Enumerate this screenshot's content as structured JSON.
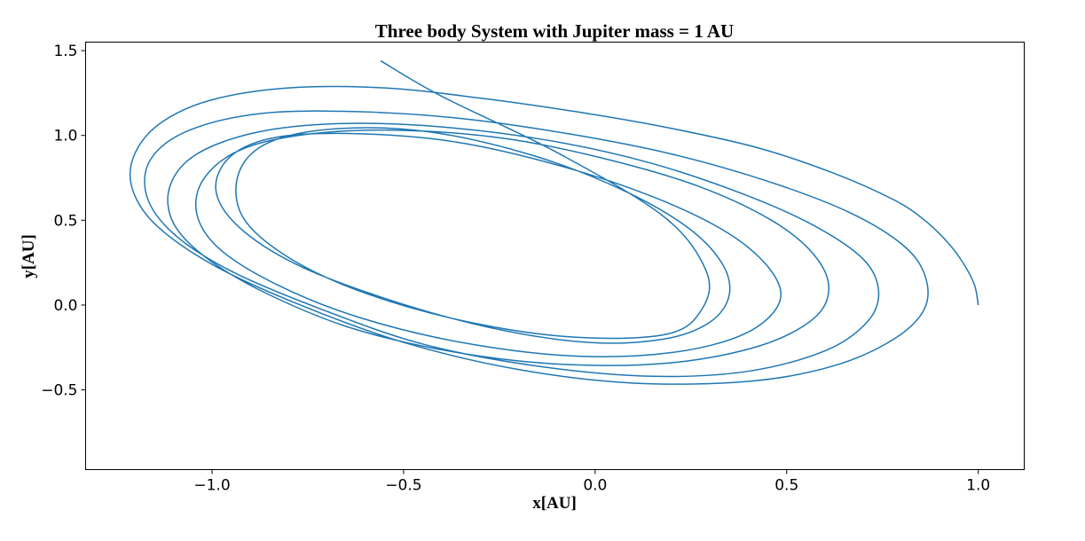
{
  "chart_data": {
    "type": "line",
    "title": "Three body System with Jupiter mass = 1 AU",
    "xlabel": "x[AU]",
    "ylabel": "y[AU]",
    "xlim": [
      -1.33,
      1.12
    ],
    "ylim": [
      -0.97,
      1.55
    ],
    "xticks": [
      -1.0,
      -0.5,
      0.0,
      0.5,
      1.0
    ],
    "xtick_labels": [
      "−1.0",
      "−0.5",
      "0.0",
      "0.5",
      "1.0"
    ],
    "yticks": [
      -0.5,
      0.0,
      0.5,
      1.0,
      1.5
    ],
    "ytick_labels": [
      "−0.5",
      "0.0",
      "0.5",
      "1.0",
      "1.5"
    ],
    "grid": false,
    "line_color": "#1f77b4",
    "series": [
      {
        "description_points": "orbit trajectory (spiral of ~5 decaying ellipses)",
        "x": [
          1.0,
          0.99,
          0.96,
          0.92,
          0.86,
          0.78,
          0.62,
          0.42,
          0.18,
          -0.05,
          -0.3,
          -0.55,
          -0.8,
          -1.0,
          -1.13,
          -1.2,
          -1.21,
          -1.15,
          -1.0,
          -0.78,
          -0.5,
          -0.2,
          0.1,
          0.4,
          0.62,
          0.78,
          0.86,
          0.86,
          0.8,
          0.66,
          0.45,
          0.2,
          -0.07,
          -0.35,
          -0.62,
          -0.87,
          -1.06,
          -1.16,
          -1.17,
          -1.1,
          -0.95,
          -0.72,
          -0.45,
          -0.15,
          0.15,
          0.4,
          0.6,
          0.71,
          0.74,
          0.7,
          0.57,
          0.38,
          0.14,
          -0.12,
          -0.4,
          -0.66,
          -0.88,
          -1.04,
          -1.11,
          -1.1,
          -1.01,
          -0.85,
          -0.63,
          -0.36,
          -0.08,
          0.2,
          0.43,
          0.57,
          0.61,
          0.57,
          0.46,
          0.27,
          0.03,
          -0.23,
          -0.5,
          -0.74,
          -0.92,
          -1.02,
          -1.04,
          -0.98,
          -0.83,
          -0.62,
          -0.35,
          -0.06,
          0.2,
          0.39,
          0.48,
          0.46,
          0.35,
          0.16,
          -0.09,
          -0.36,
          -0.62,
          -0.83,
          -0.95,
          -0.99,
          -0.93,
          -0.78,
          -0.55,
          -0.28,
          -0.02,
          0.18,
          0.3,
          0.35,
          0.33,
          0.24,
          0.07,
          -0.16,
          -0.43,
          -0.67,
          -0.85,
          -0.93,
          -0.92,
          -0.8,
          -0.6,
          -0.33,
          -0.05,
          0.19,
          0.28,
          0.29,
          0.18,
          -0.1,
          -0.4,
          -0.56
        ],
        "y": [
          0.0,
          0.12,
          0.25,
          0.37,
          0.5,
          0.62,
          0.78,
          0.93,
          1.05,
          1.14,
          1.22,
          1.28,
          1.28,
          1.21,
          1.08,
          0.9,
          0.7,
          0.48,
          0.24,
          0.01,
          -0.22,
          -0.38,
          -0.46,
          -0.45,
          -0.36,
          -0.2,
          -0.02,
          0.18,
          0.36,
          0.55,
          0.73,
          0.89,
          1.01,
          1.1,
          1.14,
          1.13,
          1.03,
          0.86,
          0.64,
          0.42,
          0.2,
          -0.02,
          -0.23,
          -0.36,
          -0.42,
          -0.39,
          -0.27,
          -0.1,
          0.08,
          0.27,
          0.47,
          0.66,
          0.84,
          0.97,
          1.05,
          1.07,
          1.02,
          0.89,
          0.7,
          0.48,
          0.27,
          0.06,
          -0.14,
          -0.28,
          -0.35,
          -0.34,
          -0.24,
          -0.08,
          0.1,
          0.3,
          0.5,
          0.7,
          0.86,
          0.98,
          1.03,
          1.01,
          0.92,
          0.75,
          0.54,
          0.33,
          0.12,
          -0.07,
          -0.22,
          -0.3,
          -0.28,
          -0.17,
          0.01,
          0.2,
          0.42,
          0.63,
          0.82,
          0.96,
          1.01,
          0.99,
          0.88,
          0.68,
          0.46,
          0.24,
          0.04,
          -0.13,
          -0.22,
          -0.2,
          -0.1,
          0.06,
          0.25,
          0.46,
          0.68,
          0.88,
          1.02,
          1.04,
          0.96,
          0.78,
          0.52,
          0.28,
          0.07,
          -0.1,
          -0.19,
          -0.17,
          -0.02,
          0.2,
          0.52,
          0.9,
          1.23,
          1.44
        ]
      }
    ]
  }
}
